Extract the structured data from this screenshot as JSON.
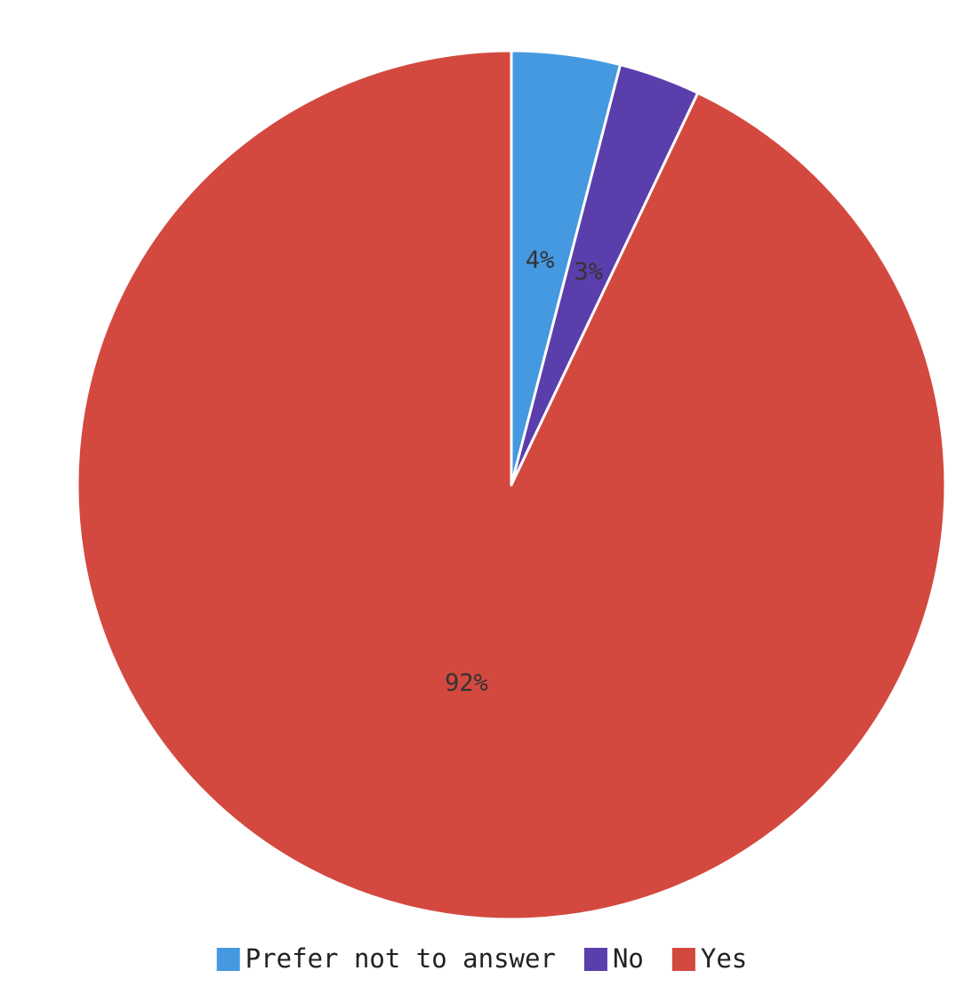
{
  "chart_data": {
    "type": "pie",
    "title": "",
    "slices": [
      {
        "label": "Prefer not to answer",
        "value": 4,
        "display": "4%",
        "color": "#4499e0"
      },
      {
        "label": "No",
        "value": 3,
        "display": "3%",
        "color": "#5a3eac"
      },
      {
        "label": "Yes",
        "value": 92,
        "display": "92%",
        "color": "#d3493f"
      }
    ],
    "start_angle": "12 o'clock",
    "direction": "clockwise",
    "legend_position": "bottom-center"
  }
}
